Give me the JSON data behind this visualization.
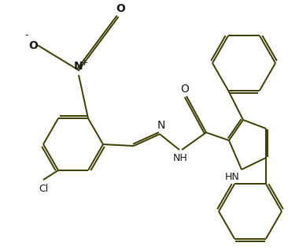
{
  "bg_color": "#ffffff",
  "line_color": "#3d3d00",
  "label_color_dark": "#1a1a1a",
  "label_color_blue": "#2b5080",
  "line_width": 1.4,
  "font_size": 9,
  "figsize": [
    3.66,
    3.17
  ],
  "dpi": 100,
  "xlim": [
    0,
    3.66
  ],
  "ylim": [
    0,
    3.17
  ]
}
